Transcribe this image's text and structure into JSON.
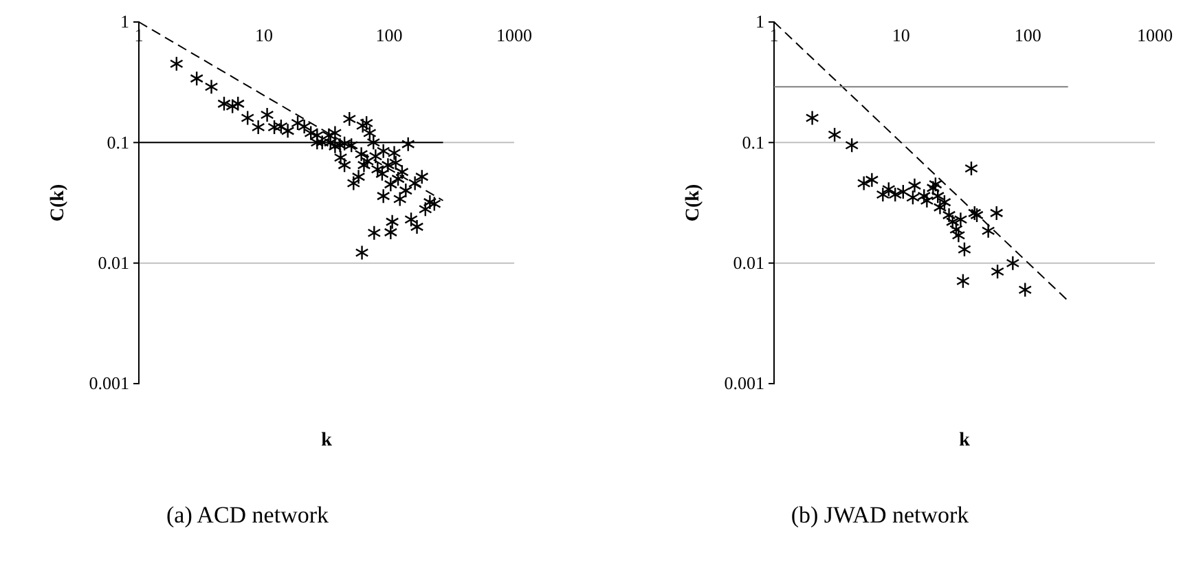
{
  "chart_data": [
    {
      "type": "scatter",
      "title": "(a) ACD network",
      "xlabel": "k",
      "ylabel": "C(k)",
      "log": "xy",
      "grid": "y",
      "xlim": [
        1,
        1000
      ],
      "ylim": [
        0.001,
        1
      ],
      "xticks": [
        1,
        10,
        100,
        1000
      ],
      "yticks": [
        0.001,
        0.01,
        0.1,
        1
      ],
      "series": [
        {
          "marker": "cross",
          "color": "#000000",
          "x": [
            2,
            2.9,
            3.8,
            4.8,
            5.6,
            6.2,
            7.4,
            9,
            10.6,
            12.1,
            13.7,
            15.5,
            18.6,
            21,
            23.7,
            26.6,
            29.2,
            33,
            37,
            40.5,
            44,
            48.2,
            50,
            41,
            44,
            52,
            57,
            61.6,
            66,
            70,
            75,
            60,
            63,
            67,
            78,
            81,
            88,
            90,
            98,
            110,
            113,
            118,
            127,
            142,
            90,
            103,
            122,
            136,
            161,
            183,
            76,
            103,
            106,
            150,
            167,
            195,
            212,
            230,
            60.7,
            26.6,
            34,
            37
          ],
          "values": [
            0.45,
            0.34,
            0.29,
            0.21,
            0.2,
            0.21,
            0.16,
            0.134,
            0.17,
            0.134,
            0.136,
            0.125,
            0.145,
            0.136,
            0.12,
            0.115,
            0.1,
            0.115,
            0.12,
            0.095,
            0.098,
            0.157,
            0.095,
            0.075,
            0.065,
            0.046,
            0.052,
            0.138,
            0.145,
            0.12,
            0.1,
            0.08,
            0.065,
            0.07,
            0.077,
            0.06,
            0.055,
            0.085,
            0.065,
            0.082,
            0.068,
            0.05,
            0.057,
            0.097,
            0.036,
            0.045,
            0.034,
            0.04,
            0.046,
            0.052,
            0.0178,
            0.018,
            0.022,
            0.023,
            0.02,
            0.028,
            0.032,
            0.031,
            0.0122,
            0.1,
            0.1,
            0.093
          ]
        },
        {
          "type": "line",
          "line_style": "dashed",
          "color": "#000000",
          "x": [
            1,
            270
          ],
          "values": [
            1,
            0.033
          ]
        },
        {
          "type": "line",
          "line_style": "solid",
          "color": "#000000",
          "x": [
            1,
            270
          ],
          "values": [
            0.1,
            0.1
          ]
        }
      ]
    },
    {
      "type": "scatter",
      "title": "(b) JWAD network",
      "xlabel": "k",
      "ylabel": "C(k)",
      "log": "xy",
      "grid": "y",
      "xlim": [
        1,
        1000
      ],
      "ylim": [
        0.001,
        1
      ],
      "xticks": [
        1,
        10,
        100,
        1000
      ],
      "yticks": [
        0.001,
        0.01,
        0.1,
        1
      ],
      "series": [
        {
          "marker": "cross",
          "color": "#000000",
          "x": [
            2,
            3,
            4.1,
            5.1,
            5.9,
            7.2,
            8,
            9,
            10.4,
            12.8,
            12.4,
            15.2,
            16,
            17.9,
            18.7,
            19.5,
            20.3,
            22,
            23.9,
            25.5,
            27.2,
            29.5,
            28.4,
            31.6,
            35.8,
            38,
            39.6,
            30.8,
            48.7,
            56.6,
            57.6,
            76,
            95
          ],
          "values": [
            0.16,
            0.116,
            0.095,
            0.046,
            0.049,
            0.037,
            0.041,
            0.037,
            0.039,
            0.044,
            0.035,
            0.036,
            0.033,
            0.042,
            0.045,
            0.036,
            0.029,
            0.032,
            0.025,
            0.022,
            0.019,
            0.023,
            0.017,
            0.013,
            0.061,
            0.026,
            0.025,
            0.0071,
            0.0185,
            0.026,
            0.0085,
            0.01,
            0.006
          ]
        },
        {
          "type": "line",
          "line_style": "dashed",
          "color": "#000000",
          "x": [
            1,
            210
          ],
          "values": [
            1,
            0.0048
          ]
        },
        {
          "type": "line",
          "line_style": "solid",
          "color": "#808080",
          "x": [
            1,
            207
          ],
          "values": [
            0.29,
            0.29
          ]
        }
      ]
    }
  ]
}
